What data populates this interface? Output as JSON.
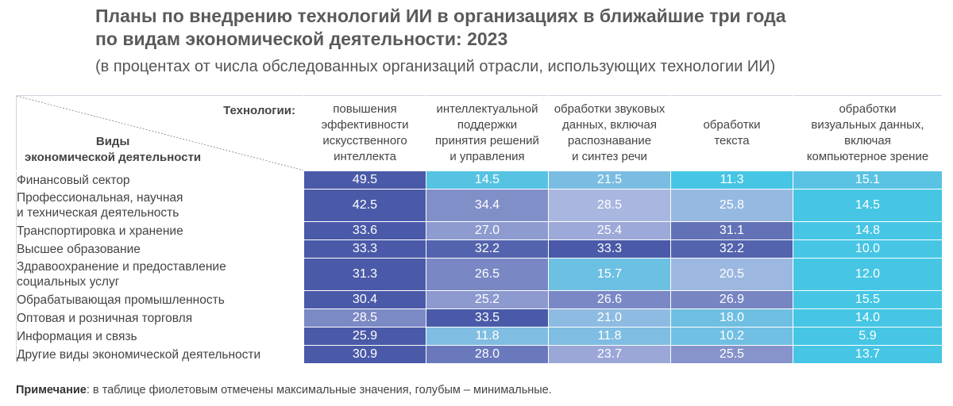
{
  "title_line1": "Планы по внедрению технологий ИИ в организациях в ближайшие три года",
  "title_line2": "по видам экономической деятельности: 2023",
  "subtitle": "(в процентах от числа обследованных организаций отрасли, использующих технологии ИИ)",
  "corner": {
    "top_label": "Технологии:",
    "bottom_label_line1": "Виды",
    "bottom_label_line2": "экономической деятельности"
  },
  "note_label": "Примечание",
  "note_text": ": в таблице фиолетовым отмечены максимальные значения, голубым – минимальные.",
  "colors": {
    "max": "#4a5aa8",
    "mid": "#a9b6e0",
    "min": "#46c6e4"
  },
  "chart_data": {
    "type": "heatmap",
    "columns": [
      [
        "повышения",
        "эффективности",
        "искусственного",
        "интеллекта"
      ],
      [
        "интеллектуальной",
        "поддержки",
        "принятия решений",
        "и управления"
      ],
      [
        "обработки звуковых",
        "данных, включая",
        "распознавание",
        "и синтез речи"
      ],
      [
        "обработки",
        "текста"
      ],
      [
        "обработки",
        "визуальных данных,",
        "включая",
        "компьютерное зрение"
      ]
    ],
    "rows": [
      {
        "label": [
          "Финансовый сектор"
        ],
        "values": [
          49.5,
          14.5,
          21.5,
          11.3,
          15.1
        ]
      },
      {
        "label": [
          "Профессиональная, научная",
          "и техническая деятельность"
        ],
        "values": [
          42.5,
          34.4,
          28.5,
          25.8,
          14.5
        ]
      },
      {
        "label": [
          "Транспортировка и хранение"
        ],
        "values": [
          33.6,
          27.0,
          25.4,
          31.1,
          14.8
        ]
      },
      {
        "label": [
          "Высшее образование"
        ],
        "values": [
          33.3,
          32.2,
          33.3,
          32.2,
          10.0
        ]
      },
      {
        "label": [
          "Здравоохранение и предоставление",
          "социальных услуг"
        ],
        "values": [
          31.3,
          26.5,
          15.7,
          20.5,
          12.0
        ]
      },
      {
        "label": [
          "Обрабатывающая промышленность"
        ],
        "values": [
          30.4,
          25.2,
          26.6,
          26.9,
          15.5
        ]
      },
      {
        "label": [
          "Оптовая и розничная торговля"
        ],
        "values": [
          28.5,
          33.5,
          21.0,
          18.0,
          14.0
        ]
      },
      {
        "label": [
          "Информация и связь"
        ],
        "values": [
          25.9,
          11.8,
          11.8,
          10.2,
          5.9
        ]
      },
      {
        "label": [
          "Другие виды экономической деятельности"
        ],
        "values": [
          30.9,
          28.0,
          23.7,
          25.5,
          13.7
        ]
      }
    ],
    "value_format": "one-decimal",
    "color_scale": "per-row: purple = max, blue = min"
  }
}
